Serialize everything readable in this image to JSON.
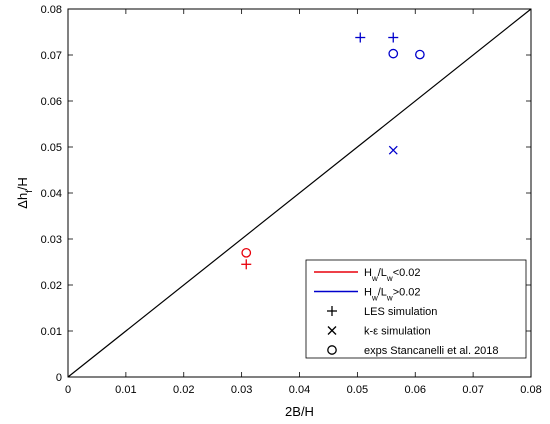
{
  "chart_data": {
    "type": "scatter",
    "xlabel": "2B/H",
    "ylabel": "Δh_f/H",
    "xlim": [
      0,
      0.08
    ],
    "ylim": [
      0,
      0.08
    ],
    "xticks": [
      "0",
      "0.01",
      "0.02",
      "0.03",
      "0.04",
      "0.05",
      "0.06",
      "0.07",
      "0.08"
    ],
    "yticks": [
      "0",
      "0.01",
      "0.02",
      "0.03",
      "0.04",
      "0.05",
      "0.06",
      "0.07",
      "0.08"
    ],
    "reference_line": {
      "x": [
        0,
        0.08
      ],
      "y": [
        0,
        0.08
      ],
      "color": "#000000"
    },
    "colors": {
      "low": "#e8000b",
      "high": "#0000cc",
      "axis": "#000000"
    },
    "points": [
      {
        "x": 0.0308,
        "y": 0.0245,
        "marker": "plus",
        "group": "low"
      },
      {
        "x": 0.0308,
        "y": 0.027,
        "marker": "circle",
        "group": "low"
      },
      {
        "x": 0.0505,
        "y": 0.0738,
        "marker": "plus",
        "group": "high"
      },
      {
        "x": 0.0562,
        "y": 0.0738,
        "marker": "plus",
        "group": "high"
      },
      {
        "x": 0.0562,
        "y": 0.0703,
        "marker": "circle",
        "group": "high"
      },
      {
        "x": 0.0608,
        "y": 0.0701,
        "marker": "circle",
        "group": "high"
      },
      {
        "x": 0.0562,
        "y": 0.0493,
        "marker": "cross",
        "group": "high"
      }
    ],
    "legend": {
      "position": "bottom-right",
      "entries": [
        {
          "type": "line",
          "color": "#e8000b",
          "base1": "H",
          "sub1": "w",
          "mid": "/L",
          "sub2": "w",
          "tail": "<0.02"
        },
        {
          "type": "line",
          "color": "#0000cc",
          "base1": "H",
          "sub1": "w",
          "mid": "/L",
          "sub2": "w",
          "tail": ">0.02"
        },
        {
          "type": "plus",
          "color": "#000000",
          "label": "LES simulation"
        },
        {
          "type": "cross",
          "color": "#000000",
          "label": "k-ε simulation"
        },
        {
          "type": "circle",
          "color": "#000000",
          "label": "exps Stancanelli et al. 2018"
        }
      ]
    }
  }
}
